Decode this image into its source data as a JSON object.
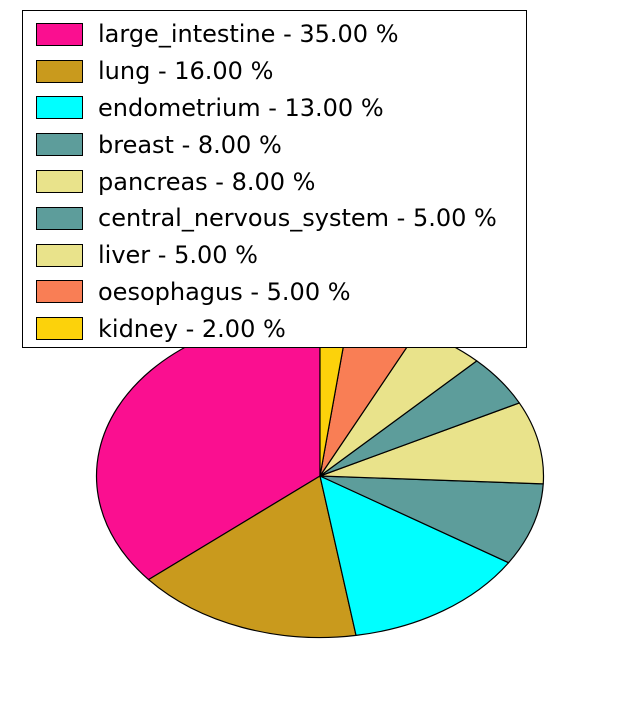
{
  "chart_data": {
    "type": "pie",
    "title": "",
    "legend_position": "upper left",
    "start_angle": 90,
    "counterclockwise": true,
    "values_total": 97,
    "background": "#FFFFFF",
    "edge_color": "#000000",
    "slices": [
      {
        "label": "large_intestine",
        "value": 35.0,
        "display": "large_intestine - 35.00 %",
        "color": "#FA0F90"
      },
      {
        "label": "lung",
        "value": 16.0,
        "display": "lung - 16.00 %",
        "color": "#C99A1D"
      },
      {
        "label": "endometrium",
        "value": 13.0,
        "display": "endometrium - 13.00 %",
        "color": "#00FFFF"
      },
      {
        "label": "breast",
        "value": 8.0,
        "display": "breast - 8.00 %",
        "color": "#5D9D9B"
      },
      {
        "label": "pancreas",
        "value": 8.0,
        "display": "pancreas - 8.00 %",
        "color": "#E9E38B"
      },
      {
        "label": "central_nervous_system",
        "value": 5.0,
        "display": "central_nervous_system - 5.00 %",
        "color": "#5D9D9B"
      },
      {
        "label": "liver",
        "value": 5.0,
        "display": "liver - 5.00 %",
        "color": "#E9E38B"
      },
      {
        "label": "oesophagus",
        "value": 5.0,
        "display": "oesophagus - 5.00 %",
        "color": "#F97E55"
      },
      {
        "label": "kidney",
        "value": 2.0,
        "display": "kidney - 2.00 %",
        "color": "#FCD20B"
      }
    ]
  }
}
